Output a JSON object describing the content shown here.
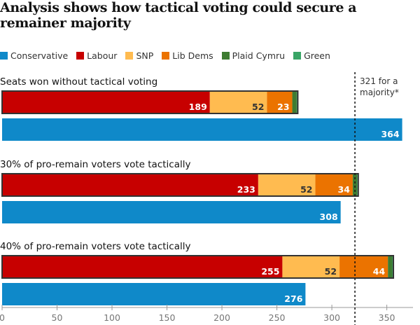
{
  "title": "Analysis shows how tactical voting could secure a remainer majority",
  "legend": [
    {
      "name": "Conservative",
      "color": "#0f89c9"
    },
    {
      "name": "Labour",
      "color": "#c70000"
    },
    {
      "name": "SNP",
      "color": "#ffbb50"
    },
    {
      "name": "Lib Dems",
      "color": "#eb7300"
    },
    {
      "name": "Plaid Cymru",
      "color": "#3e7c31"
    },
    {
      "name": "Green",
      "color": "#39a566"
    }
  ],
  "chart_data": {
    "type": "bar",
    "title": "Analysis shows how tactical voting could secure a remainer majority",
    "orientation": "horizontal",
    "stacked_remain_bloc": true,
    "scenarios": [
      {
        "label": "Seats won without tactical voting",
        "remain": {
          "Labour": 189,
          "SNP": 52,
          "Lib Dems": 23,
          "Plaid Cymru": 4,
          "Green": 1
        },
        "conservative": 364
      },
      {
        "label": "30% of pro-remain voters vote tactically",
        "remain": {
          "Labour": 233,
          "SNP": 52,
          "Lib Dems": 34,
          "Plaid Cymru": 4,
          "Green": 1
        },
        "conservative": 308
      },
      {
        "label": "40% of pro-remain voters vote tactically",
        "remain": {
          "Labour": 255,
          "SNP": 52,
          "Lib Dems": 44,
          "Plaid Cymru": 4,
          "Green": 1
        },
        "conservative": 276
      }
    ],
    "majority_line": {
      "value": 321,
      "label": "321 for a majority*"
    },
    "xlim": [
      0,
      370
    ],
    "xticks": [
      0,
      50,
      100,
      150,
      200,
      250,
      300,
      350
    ],
    "grid": false
  }
}
